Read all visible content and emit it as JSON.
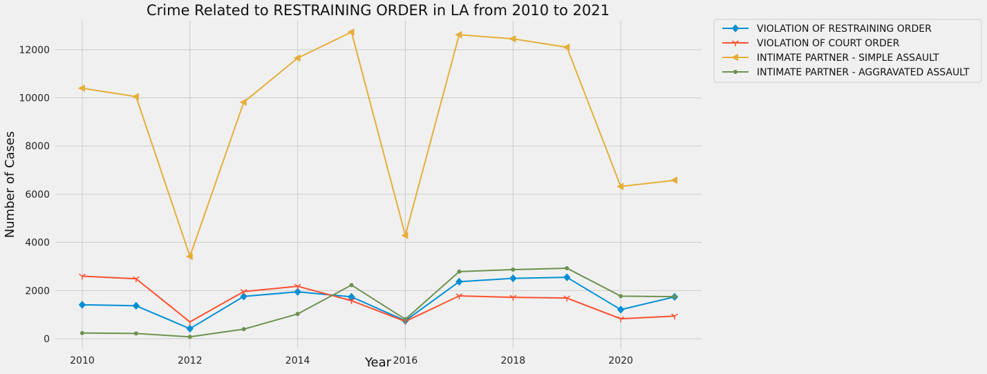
{
  "chart_data": {
    "type": "line",
    "title": "Crime Related to RESTRAINING ORDER in LA from 2010 to 2021",
    "xlabel": "Year",
    "ylabel": "Number of Cases",
    "x": [
      2010,
      2011,
      2012,
      2013,
      2014,
      2015,
      2016,
      2017,
      2018,
      2019,
      2020,
      2021
    ],
    "xlim": [
      2009.5,
      2021.5
    ],
    "ylim": [
      -400,
      13200
    ],
    "xticks": [
      2010,
      2012,
      2014,
      2016,
      2018,
      2020
    ],
    "yticks": [
      0,
      2000,
      4000,
      6000,
      8000,
      10000,
      12000
    ],
    "grid": true,
    "legend_position": "outside-top-right",
    "series": [
      {
        "name": "VIOLATION OF RESTRAINING ORDER",
        "color": "#008fd5",
        "marker": "diamond",
        "values": [
          1410,
          1370,
          420,
          1760,
          1950,
          1740,
          750,
          2370,
          2510,
          2550,
          1210,
          1740
        ]
      },
      {
        "name": "VIOLATION OF COURT ORDER",
        "color": "#fc4f30",
        "marker": "tri-down",
        "values": [
          2600,
          2490,
          700,
          1960,
          2180,
          1580,
          720,
          1780,
          1720,
          1690,
          830,
          940
        ]
      },
      {
        "name": "INTIMATE PARTNER - SIMPLE ASSAULT",
        "color": "#e5ae38",
        "marker": "triangle-left",
        "values": [
          10400,
          10050,
          3420,
          9820,
          11650,
          12730,
          4290,
          12620,
          12450,
          12100,
          6320,
          6580
        ]
      },
      {
        "name": "INTIMATE PARTNER - AGGRAVATED ASSAULT",
        "color": "#6d904f",
        "marker": "point",
        "values": [
          240,
          220,
          80,
          400,
          1030,
          2230,
          810,
          2790,
          2870,
          2930,
          1770,
          1750
        ]
      }
    ]
  }
}
